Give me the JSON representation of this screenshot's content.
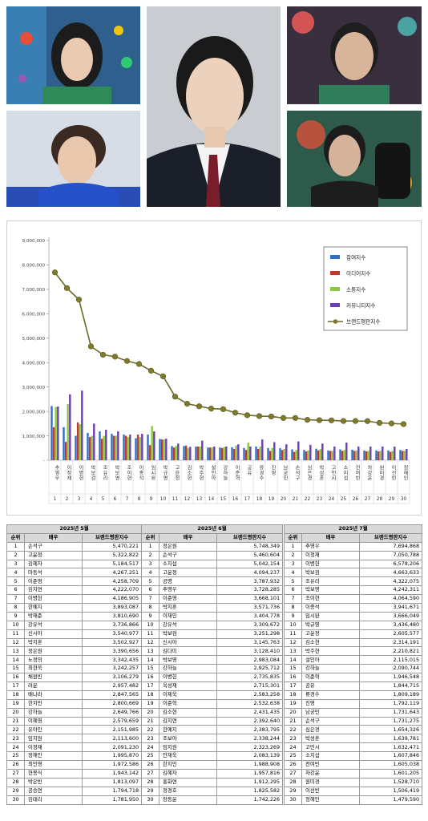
{
  "chart_data": {
    "type": "bar",
    "y_ticks": [
      "-",
      "1,000,000",
      "2,000,000",
      "3,000,000",
      "4,000,000",
      "5,000,000",
      "6,000,000",
      "7,000,000",
      "8,000,000",
      "9,000,000"
    ],
    "ylim": [
      0,
      9000000
    ],
    "legend_position": "right",
    "categories": [
      "추영우",
      "이정재",
      "이병헌",
      "박보검",
      "조유리",
      "박보영",
      "조이현",
      "이종석",
      "임시완",
      "박규영",
      "고윤정",
      "김소현",
      "박주현",
      "설인아",
      "강하늘",
      "이준혁",
      "공유",
      "류경수",
      "진영",
      "남궁민",
      "손석구",
      "심은경",
      "박성훈",
      "고민시",
      "소지섭",
      "전여빈",
      "차강윤",
      "원미경",
      "이선빈",
      "정해인"
    ],
    "ranks": [
      "1",
      "2",
      "3",
      "4",
      "5",
      "6",
      "7",
      "8",
      "9",
      "10",
      "11",
      "12",
      "13",
      "14",
      "15",
      "16",
      "17",
      "18",
      "19",
      "20",
      "21",
      "22",
      "23",
      "24",
      "25",
      "26",
      "27",
      "28",
      "29",
      "30"
    ],
    "series": [
      {
        "name": "참여지수",
        "color": "#2e6fc9",
        "values": [
          2220000,
          1350000,
          1000000,
          1120000,
          1180000,
          1080000,
          1050000,
          900000,
          1050000,
          870000,
          580000,
          580000,
          560000,
          520000,
          520000,
          530000,
          500000,
          560000,
          500000,
          490000,
          440000,
          420000,
          470000,
          400000,
          440000,
          430000,
          400000,
          400000,
          400000,
          420000
        ]
      },
      {
        "name": "미디어지수",
        "color": "#c0392b",
        "values": [
          1350000,
          750000,
          1550000,
          950000,
          880000,
          1000000,
          1000000,
          1050000,
          620000,
          850000,
          520000,
          600000,
          560000,
          520000,
          500000,
          460000,
          420000,
          460000,
          380000,
          420000,
          340000,
          360000,
          400000,
          380000,
          380000,
          380000,
          360000,
          360000,
          340000,
          380000
        ]
      },
      {
        "name": "소통지수",
        "color": "#8dc63f",
        "values": [
          2180000,
          2300000,
          1480000,
          1000000,
          1000000,
          1000000,
          950000,
          950000,
          1400000,
          850000,
          580000,
          500000,
          560000,
          520000,
          540000,
          600000,
          720000,
          560000,
          500000,
          460000,
          420000,
          400000,
          450000,
          380000,
          420000,
          400000,
          380000,
          380000,
          380000,
          380000
        ]
      },
      {
        "name": "커뮤니티지수",
        "color": "#6a3fb0",
        "values": [
          2200000,
          2700000,
          2850000,
          1500000,
          1250000,
          1180000,
          1050000,
          1080000,
          1180000,
          880000,
          680000,
          550000,
          800000,
          560000,
          560000,
          650000,
          560000,
          850000,
          740000,
          650000,
          770000,
          630000,
          680000,
          560000,
          720000,
          560000,
          560000,
          560000,
          560000,
          460000
        ]
      }
    ],
    "line": {
      "name": "브랜드평판지수",
      "color": "#6b6a2a",
      "values": [
        7694868,
        7050788,
        6578206,
        4663633,
        4322075,
        4242311,
        4064590,
        3941671,
        3666049,
        3436480,
        2605577,
        2314191,
        2210821,
        2115015,
        2090744,
        1946548,
        1844715,
        1809189,
        1792119,
        1731643,
        1731275,
        1654326,
        1639781,
        1632471,
        1607846,
        1605038,
        1601205,
        1528710,
        1506419,
        1479590
      ]
    }
  },
  "tables": [
    {
      "title": "2025년 5월",
      "headers": [
        "순위",
        "배우",
        "브랜드평판지수"
      ],
      "rows": [
        [
          "1",
          "손석구",
          "5,470,221"
        ],
        [
          "2",
          "고윤정",
          "5,322,822"
        ],
        [
          "3",
          "김혜자",
          "5,184,517"
        ],
        [
          "4",
          "마동석",
          "4,267,251"
        ],
        [
          "5",
          "이준영",
          "4,258,709"
        ],
        [
          "6",
          "김지연",
          "4,222,070"
        ],
        [
          "7",
          "이병헌",
          "4,186,905"
        ],
        [
          "8",
          "한예지",
          "3,893,087"
        ],
        [
          "9",
          "박해준",
          "3,810,690"
        ],
        [
          "10",
          "강유석",
          "3,736,866"
        ],
        [
          "11",
          "신시아",
          "3,540,977"
        ],
        [
          "12",
          "박지훈",
          "3,502,927"
        ],
        [
          "13",
          "정은원",
          "3,390,656"
        ],
        [
          "14",
          "노정의",
          "3,342,435"
        ],
        [
          "15",
          "최현욱",
          "3,242,257"
        ],
        [
          "16",
          "채원빈",
          "3,106,279"
        ],
        [
          "17",
          "려운",
          "2,957,482"
        ],
        [
          "18",
          "배나라",
          "2,847,565"
        ],
        [
          "19",
          "한지민",
          "2,800,669"
        ],
        [
          "20",
          "강하늘",
          "2,649,766"
        ],
        [
          "21",
          "이혜영",
          "2,579,659"
        ],
        [
          "22",
          "유아인",
          "2,151,985"
        ],
        [
          "23",
          "임지원",
          "2,113,600"
        ],
        [
          "24",
          "이정재",
          "2,091,230"
        ],
        [
          "25",
          "정해인",
          "1,995,870"
        ],
        [
          "26",
          "최민영",
          "1,972,586"
        ],
        [
          "27",
          "현봉식",
          "1,943,142"
        ],
        [
          "28",
          "박은빈",
          "1,813,097"
        ],
        [
          "29",
          "공승연",
          "1,794,718"
        ],
        [
          "30",
          "김태리",
          "1,781,950"
        ]
      ]
    },
    {
      "title": "2025년 6월",
      "headers": [
        "순위",
        "배우",
        "브랜드평판지수"
      ],
      "rows": [
        [
          "1",
          "정은원",
          "5,748,349"
        ],
        [
          "2",
          "손석구",
          "5,460,604"
        ],
        [
          "3",
          "소지섭",
          "5,042,154"
        ],
        [
          "4",
          "고윤정",
          "4,094,237"
        ],
        [
          "5",
          "공명",
          "3,787,932"
        ],
        [
          "6",
          "추영우",
          "3,728,285"
        ],
        [
          "7",
          "이준영",
          "3,668,101"
        ],
        [
          "8",
          "박지훈",
          "3,571,736"
        ],
        [
          "9",
          "이재인",
          "3,404,778"
        ],
        [
          "10",
          "강유석",
          "3,309,672"
        ],
        [
          "11",
          "박보검",
          "3,251,298"
        ],
        [
          "12",
          "신시아",
          "3,145,763"
        ],
        [
          "13",
          "김다미",
          "3,128,410"
        ],
        [
          "14",
          "박보영",
          "2,983,084"
        ],
        [
          "15",
          "강하늘",
          "2,925,712"
        ],
        [
          "16",
          "이병헌",
          "2,735,835"
        ],
        [
          "17",
          "옥성재",
          "2,715,301"
        ],
        [
          "18",
          "이제욱",
          "2,583,258"
        ],
        [
          "19",
          "이준혁",
          "2,532,638"
        ],
        [
          "20",
          "김소현",
          "2,431,435"
        ],
        [
          "21",
          "김지연",
          "2,392,640"
        ],
        [
          "22",
          "한예지",
          "2,383,795"
        ],
        [
          "23",
          "조보아",
          "2,338,244"
        ],
        [
          "24",
          "임지원",
          "2,323,269"
        ],
        [
          "25",
          "안재욱",
          "2,083,139"
        ],
        [
          "26",
          "한지민",
          "1,988,908"
        ],
        [
          "27",
          "김혜자",
          "1,957,816"
        ],
        [
          "28",
          "홍화연",
          "1,912,295"
        ],
        [
          "29",
          "정경호",
          "1,825,582"
        ],
        [
          "30",
          "장동윤",
          "1,742,226"
        ]
      ]
    },
    {
      "title": "2025년 7월",
      "headers": [
        "순위",
        "배우",
        "브랜드평판지수"
      ],
      "rows": [
        [
          "1",
          "추영우",
          "7,694,868"
        ],
        [
          "2",
          "이정재",
          "7,050,788"
        ],
        [
          "3",
          "이병헌",
          "6,578,206"
        ],
        [
          "4",
          "박보검",
          "4,663,633"
        ],
        [
          "5",
          "조유리",
          "4,322,075"
        ],
        [
          "6",
          "박보영",
          "4,242,311"
        ],
        [
          "7",
          "조이현",
          "4,064,590"
        ],
        [
          "8",
          "이종석",
          "3,941,671"
        ],
        [
          "9",
          "임시완",
          "3,666,049"
        ],
        [
          "10",
          "박규영",
          "3,436,480"
        ],
        [
          "11",
          "고윤정",
          "2,605,577"
        ],
        [
          "12",
          "김소현",
          "2,314,191"
        ],
        [
          "13",
          "박주현",
          "2,210,821"
        ],
        [
          "14",
          "설인아",
          "2,115,015"
        ],
        [
          "15",
          "강하늘",
          "2,090,744"
        ],
        [
          "16",
          "이준혁",
          "1,946,548"
        ],
        [
          "17",
          "공유",
          "1,844,715"
        ],
        [
          "18",
          "류경수",
          "1,809,189"
        ],
        [
          "19",
          "진영",
          "1,792,119"
        ],
        [
          "20",
          "남궁민",
          "1,731,643"
        ],
        [
          "21",
          "손석구",
          "1,731,275"
        ],
        [
          "22",
          "심은경",
          "1,654,326"
        ],
        [
          "23",
          "박성훈",
          "1,639,781"
        ],
        [
          "24",
          "고민시",
          "1,632,471"
        ],
        [
          "25",
          "소지섭",
          "1,607,846"
        ],
        [
          "26",
          "전여빈",
          "1,605,038"
        ],
        [
          "27",
          "차강윤",
          "1,601,205"
        ],
        [
          "28",
          "원미경",
          "1,528,710"
        ],
        [
          "29",
          "이선빈",
          "1,506,419"
        ],
        [
          "30",
          "정해인",
          "1,479,590"
        ]
      ]
    }
  ]
}
